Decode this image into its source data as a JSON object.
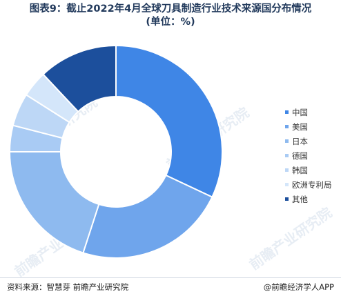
{
  "title": {
    "line1": "图表9：截止2022年4月全球刀具制造行业技术来源国分布情况",
    "line2": "(单位：%)"
  },
  "watermark": "前瞻产业研究院",
  "footer": {
    "source": "资料来源：智慧芽 前瞻产业研究院",
    "brand": "@前瞻经济学人APP"
  },
  "chart_data": {
    "type": "pie",
    "variant": "donut",
    "legend_position": "right",
    "categories": [
      "中国",
      "美国",
      "日本",
      "德国",
      "韩国",
      "欧洲专利局",
      "其他"
    ],
    "values": [
      32,
      23,
      20,
      4,
      5,
      4,
      12
    ],
    "colors": [
      "#3f86e6",
      "#6fa5ec",
      "#8ebaef",
      "#a9cbf4",
      "#bdd7f6",
      "#d4e6fa",
      "#1c4f9c"
    ]
  }
}
